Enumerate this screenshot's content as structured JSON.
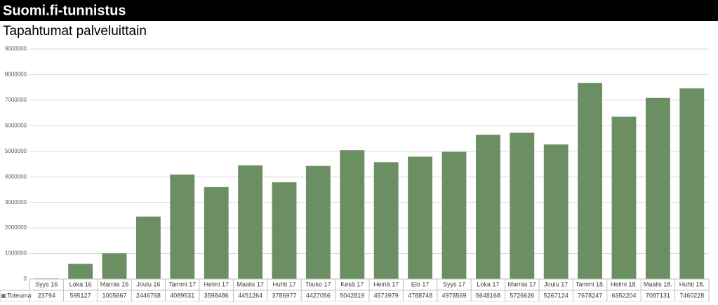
{
  "header": {
    "title": "Suomi.fi-tunnistus"
  },
  "chart_data": {
    "type": "bar",
    "title": "Tapahtumat palveluittain",
    "categories": [
      "Syys 16",
      "Loka 16",
      "Marras 16",
      "Joulu 16",
      "Tammi 17",
      "Helmi 17",
      "Maalis 17",
      "Huhti 17",
      "Touko 17",
      "Kesä 17",
      "Heinä 17",
      "Elo 17",
      "Syys 17",
      "Loka 17",
      "Marras 17",
      "Joulu 17",
      "Tammi 18.",
      "Helmi 18.",
      "Maalis 18.",
      "Huhti 18."
    ],
    "series": [
      {
        "name": "Toteuma",
        "color": "#6b8e62",
        "values": [
          23794,
          595127,
          1005667,
          2446768,
          4089531,
          3598486,
          4451264,
          3786977,
          4427056,
          5042819,
          4573979,
          4788748,
          4978569,
          5648168,
          5726626,
          5267124,
          7678247,
          6352204,
          7087131,
          7460228
        ]
      }
    ],
    "ylim": [
      0,
      9000000
    ],
    "yticks": [
      0,
      1000000,
      2000000,
      3000000,
      4000000,
      5000000,
      6000000,
      7000000,
      8000000,
      9000000
    ],
    "grid": true
  }
}
